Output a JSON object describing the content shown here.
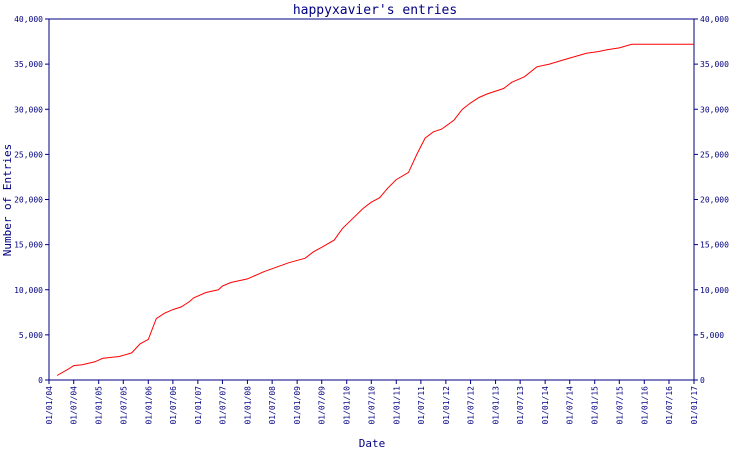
{
  "chart_data": {
    "type": "line",
    "title": "happyxavier's entries",
    "xlabel": "Date",
    "ylabel": "Number of Entries",
    "x_ticks": [
      "01/01/04",
      "01/07/04",
      "01/01/05",
      "01/07/05",
      "01/01/06",
      "01/07/06",
      "01/01/07",
      "01/07/07",
      "01/01/08",
      "01/07/08",
      "01/01/09",
      "01/07/09",
      "01/01/10",
      "01/07/10",
      "01/01/11",
      "01/07/11",
      "01/01/12",
      "01/07/12",
      "01/01/13",
      "01/07/13",
      "01/01/14",
      "01/07/14",
      "01/01/15",
      "01/07/15",
      "01/01/16",
      "01/07/16",
      "01/01/17"
    ],
    "y_ticks": [
      "0",
      "5,000",
      "10,000",
      "15,000",
      "20,000",
      "25,000",
      "30,000",
      "35,000",
      "40,000"
    ],
    "ylim": [
      0,
      40000
    ],
    "grid": false,
    "line_color": "#ff0000",
    "axis_color": "#000080",
    "series": [
      {
        "x": [
          "2004-03-01",
          "2004-06-01",
          "2004-07-01",
          "2004-09-01",
          "2004-12-01",
          "2005-02-01",
          "2005-06-01",
          "2005-09-01",
          "2005-11-01",
          "2006-01-01",
          "2006-03-01",
          "2006-05-01",
          "2006-07-01",
          "2006-09-01",
          "2006-11-01",
          "2006-12-01",
          "2007-03-01",
          "2007-06-01",
          "2007-07-01",
          "2007-09-01",
          "2008-01-01",
          "2008-05-01",
          "2008-08-01",
          "2008-11-01",
          "2009-03-01",
          "2009-05-01",
          "2009-07-01",
          "2009-10-01",
          "2009-12-01",
          "2010-02-01",
          "2010-05-01",
          "2010-07-01",
          "2010-09-01",
          "2010-11-01",
          "2011-01-01",
          "2011-04-01",
          "2011-06-01",
          "2011-08-01",
          "2011-10-01",
          "2011-12-01",
          "2012-03-01",
          "2012-05-01",
          "2012-07-01",
          "2012-09-01",
          "2012-11-01",
          "2013-03-01",
          "2013-05-01",
          "2013-08-01",
          "2013-11-01",
          "2014-02-01",
          "2014-05-01",
          "2014-08-01",
          "2014-11-01",
          "2015-02-01",
          "2015-04-01",
          "2015-07-01",
          "2015-10-01",
          "2016-01-01",
          "2016-06-01",
          "2017-01-01"
        ],
        "y": [
          500,
          1300,
          1600,
          1700,
          2000,
          2400,
          2600,
          3000,
          4000,
          4500,
          6800,
          7400,
          7800,
          8100,
          8700,
          9100,
          9700,
          10000,
          10400,
          10800,
          11200,
          12000,
          12500,
          13000,
          13500,
          14200,
          14700,
          15500,
          16800,
          17700,
          19000,
          19700,
          20200,
          21300,
          22200,
          23000,
          25000,
          26800,
          27500,
          27800,
          28800,
          30000,
          30700,
          31300,
          31700,
          32300,
          33000,
          33600,
          34700,
          35000,
          35400,
          35800,
          36200,
          36400,
          36600,
          36800,
          37200,
          37200,
          37200,
          37200
        ]
      }
    ]
  }
}
